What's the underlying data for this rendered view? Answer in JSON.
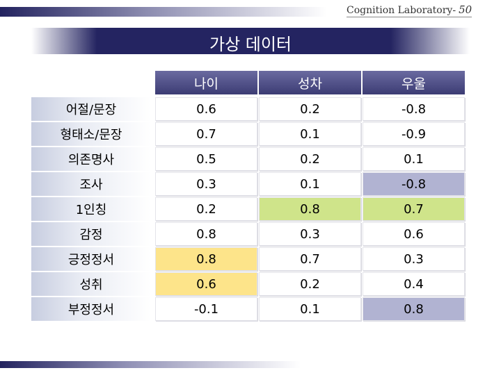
{
  "header": {
    "text": "Cognition Laboratory-",
    "page": "50"
  },
  "title": "가상 데이터",
  "table": {
    "columns": [
      "나이",
      "성차",
      "우울"
    ],
    "rows": [
      {
        "label": "어절/문장",
        "values": [
          "0.6",
          "0.2",
          "-0.8"
        ]
      },
      {
        "label": "형태소/문장",
        "values": [
          "0.7",
          "0.1",
          "-0.9"
        ]
      },
      {
        "label": "의존명사",
        "values": [
          "0.5",
          "0.2",
          "0.1"
        ]
      },
      {
        "label": "조사",
        "values": [
          "0.3",
          "0.1",
          "-0.8"
        ]
      },
      {
        "label": "1인칭",
        "values": [
          "0.2",
          "0.8",
          "0.7"
        ]
      },
      {
        "label": "감정",
        "values": [
          "0.8",
          "0.3",
          "0.6"
        ]
      },
      {
        "label": "긍정정서",
        "values": [
          "0.8",
          "0.7",
          "0.3"
        ]
      },
      {
        "label": "성취",
        "values": [
          "0.6",
          "0.2",
          "0.4"
        ]
      },
      {
        "label": "부정정서",
        "values": [
          "-0.1",
          "0.1",
          "0.8"
        ]
      }
    ]
  },
  "colors": {
    "header_bg": "#4b4b85",
    "row_label_bg": "#dfe3ee",
    "default_cell": "#ffffff",
    "highlight_yellow": "#fde48a",
    "highlight_green": "#cfe48a",
    "highlight_lavender": "#b1b3d2"
  },
  "highlights": {
    "3-2": "lavender",
    "4-1": "green",
    "4-2": "green",
    "6-0": "yellow",
    "7-0": "yellow",
    "8-2": "lavender"
  }
}
